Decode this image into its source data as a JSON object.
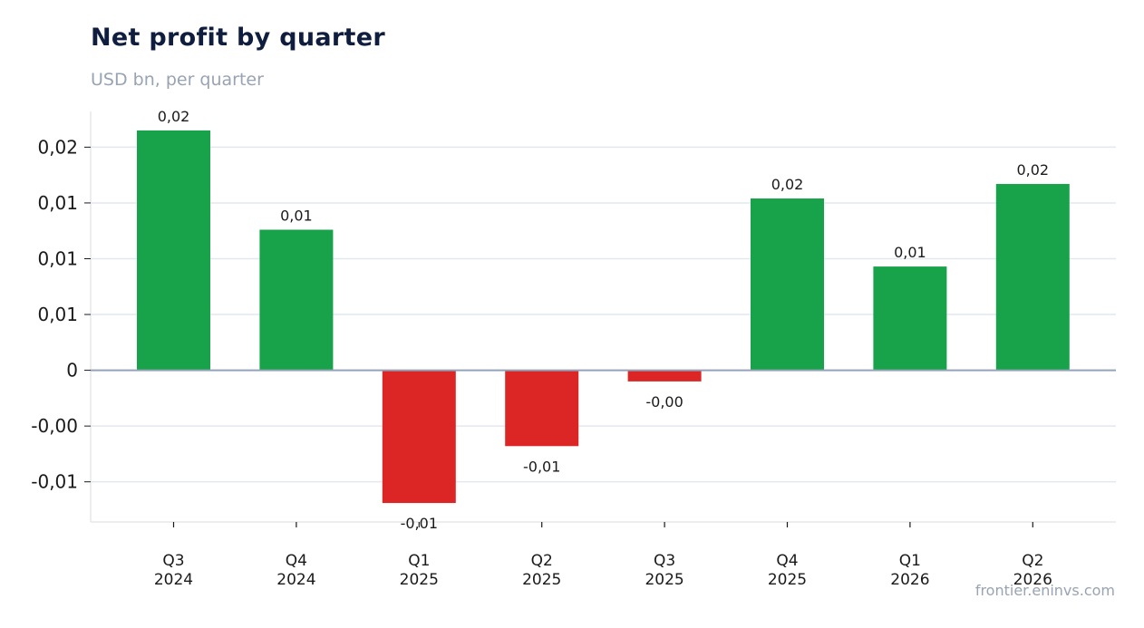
{
  "chart_data": {
    "type": "bar",
    "title": "Net profit by quarter",
    "subtitle": "USD bn, per quarter",
    "xlabel": "",
    "ylabel": "",
    "categories": [
      "Q3\n2024",
      "Q4\n2024",
      "Q1\n2025",
      "Q2\n2025",
      "Q3\n2025",
      "Q4\n2025",
      "Q1\n2026",
      "Q2\n2026"
    ],
    "values": [
      0.0215,
      0.0126,
      -0.0119,
      -0.0068,
      -0.001,
      0.0154,
      0.0093,
      0.0167
    ],
    "data_labels": [
      "0,02",
      "0,01",
      "-0,01",
      "-0,01",
      "-0,00",
      "0,02",
      "0,01",
      "0,02"
    ],
    "yticks": [
      -0.01,
      -0.005,
      0,
      0.005,
      0.01,
      0.015,
      0.02
    ],
    "ytick_labels": [
      "-0,01",
      "-0,00",
      "0",
      "0,01",
      "0,01",
      "0,01",
      "0,02"
    ],
    "ylim": [
      -0.0136,
      0.0232
    ],
    "grid": true,
    "colors": {
      "positive": "#18a34a",
      "negative": "#dc2626",
      "zero_line": "#94a3b8",
      "grid": "#e2e8f0"
    }
  },
  "source": "frontier.eninvs.com"
}
